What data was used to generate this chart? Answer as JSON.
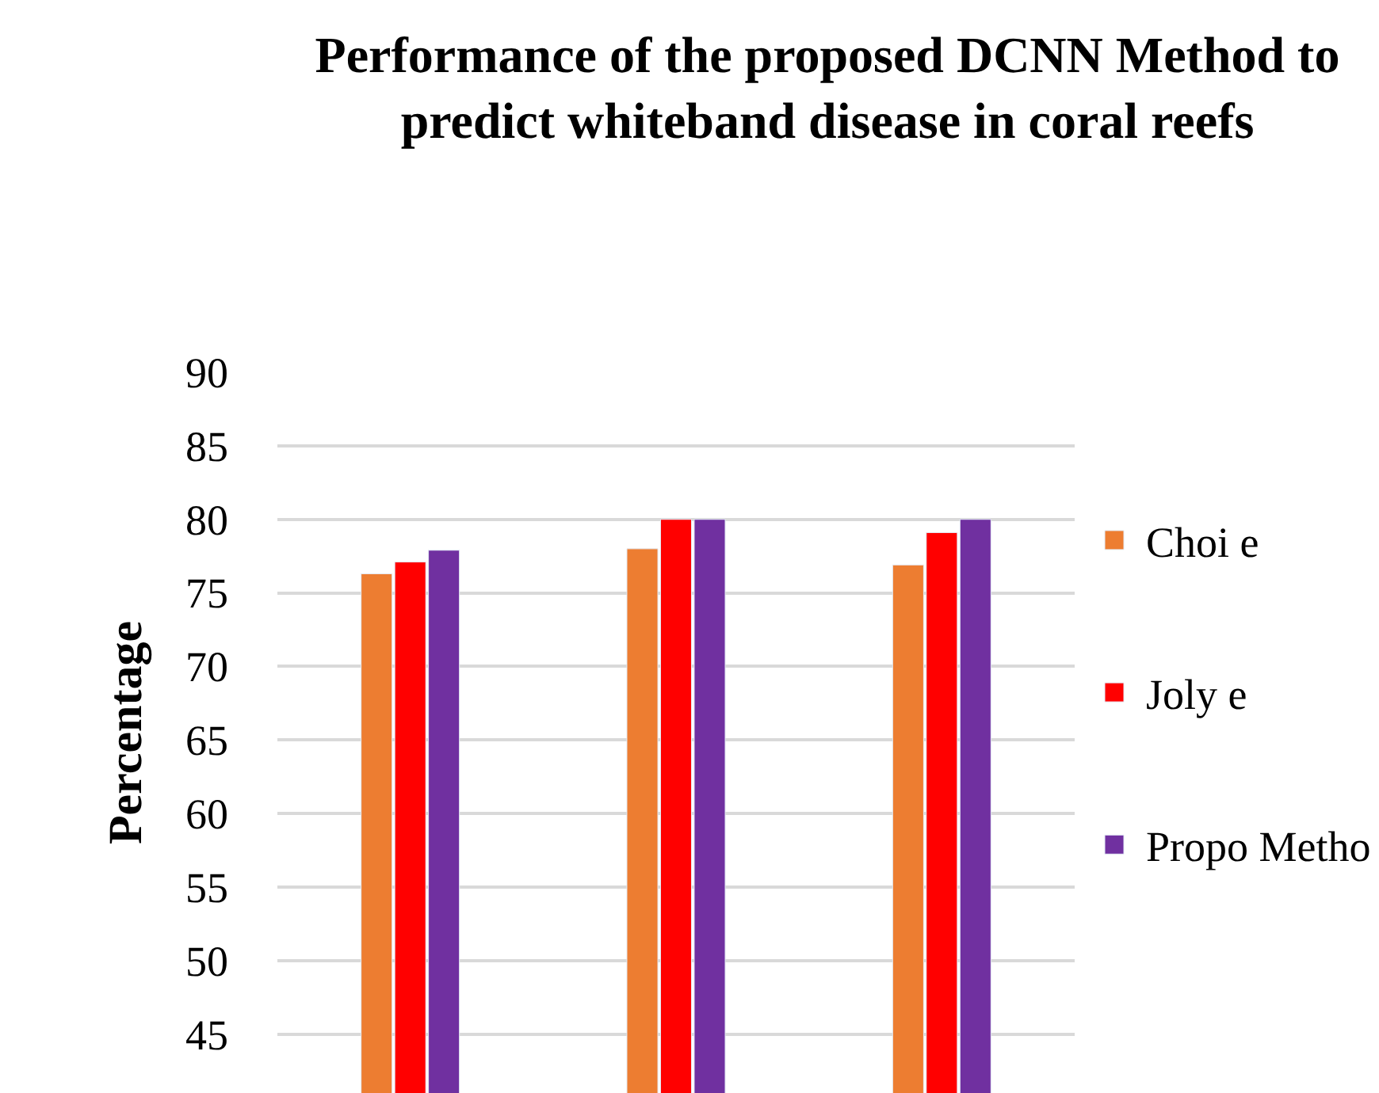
{
  "chart_data": {
    "type": "bar",
    "title": "Performance of the proposed DCNN Method to predict whiteband disease in coral reefs",
    "ylabel": "Percentage",
    "categories": [
      null,
      null,
      null
    ],
    "series": [
      {
        "name": "Choi e",
        "color": "#ed7d31",
        "values": [
          76.3,
          78.0,
          76.9
        ]
      },
      {
        "name": "Joly e",
        "color": "#ff0000",
        "values": [
          77.1,
          80.0,
          79.1
        ]
      },
      {
        "name": "Propo Metho",
        "color": "#7030a0",
        "values": [
          77.9,
          80.0,
          80.0
        ]
      }
    ],
    "ylim": [
      41,
      90
    ],
    "yticks": [
      45,
      50,
      55,
      60,
      65,
      70,
      75,
      80,
      85,
      90
    ],
    "grid": "y",
    "legend": "right"
  }
}
